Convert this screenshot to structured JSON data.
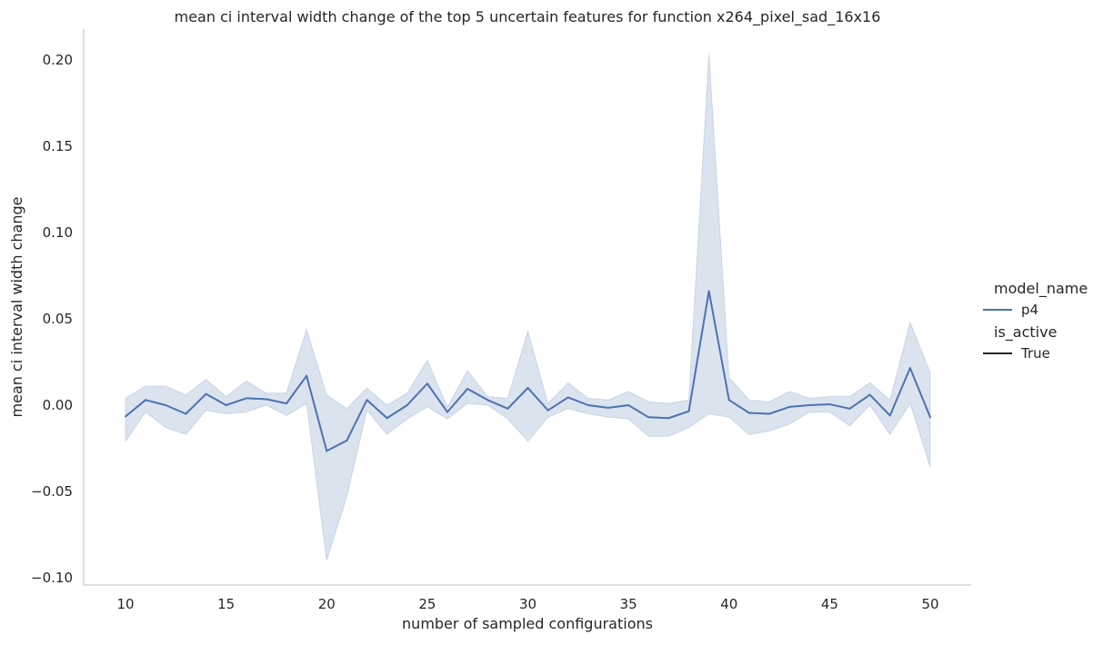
{
  "chart_data": {
    "type": "line",
    "title": "mean ci interval width change of the top 5 uncertain features for function x264_pixel_sad_16x16",
    "xlabel": "number of sampled configurations",
    "ylabel": "mean ci interval width change",
    "xlim": [
      8,
      52
    ],
    "ylim": [
      -0.105,
      0.218
    ],
    "xticks": [
      10,
      15,
      20,
      25,
      30,
      35,
      40,
      45,
      50
    ],
    "yticks": [
      -0.1,
      -0.05,
      0.0,
      0.05,
      0.1,
      0.15,
      0.2
    ],
    "ytick_labels": [
      "−0.10",
      "−0.05",
      "0.00",
      "0.05",
      "0.10",
      "0.15",
      "0.20"
    ],
    "grid": false,
    "legend_placement": "right",
    "legend": {
      "title1": "model_name",
      "title2": "is_active",
      "entries": [
        {
          "label": "p4",
          "color": "#4c72b0"
        },
        {
          "label": "True",
          "color": "#262626"
        }
      ]
    },
    "series": [
      {
        "name": "p4",
        "color": "#4c72b0",
        "band_color": "#4c72b0",
        "x": [
          10,
          11,
          12,
          13,
          14,
          15,
          16,
          17,
          18,
          19,
          20,
          21,
          22,
          23,
          24,
          25,
          26,
          27,
          28,
          29,
          30,
          31,
          32,
          33,
          34,
          35,
          36,
          37,
          38,
          39,
          40,
          41,
          42,
          43,
          44,
          45,
          46,
          47,
          48,
          49,
          50
        ],
        "y": [
          -0.0065,
          0.003,
          0.0,
          -0.005,
          0.0065,
          0.0,
          0.004,
          0.0035,
          0.001,
          0.017,
          -0.0265,
          -0.0205,
          0.003,
          -0.0075,
          0.0,
          0.0125,
          -0.004,
          0.0095,
          0.003,
          -0.002,
          0.01,
          -0.003,
          0.0045,
          0.0,
          -0.0015,
          0.0,
          -0.007,
          -0.0075,
          -0.0035,
          0.066,
          0.003,
          -0.0045,
          -0.005,
          -0.001,
          0.0,
          0.0005,
          -0.002,
          0.006,
          -0.006,
          0.0215,
          -0.007
        ],
        "ci_lower": [
          -0.021,
          -0.004,
          -0.013,
          -0.017,
          -0.003,
          -0.005,
          -0.004,
          0.0,
          -0.006,
          0.001,
          -0.09,
          -0.053,
          -0.003,
          -0.017,
          -0.008,
          -0.001,
          -0.008,
          0.001,
          0.0,
          -0.008,
          -0.021,
          -0.007,
          -0.002,
          -0.005,
          -0.007,
          -0.008,
          -0.018,
          -0.018,
          -0.013,
          -0.005,
          -0.007,
          -0.017,
          -0.015,
          -0.011,
          -0.004,
          -0.004,
          -0.012,
          0.0,
          -0.017,
          0.001,
          -0.036
        ],
        "ci_upper": [
          0.004,
          0.011,
          0.011,
          0.006,
          0.015,
          0.005,
          0.014,
          0.007,
          0.007,
          0.044,
          0.006,
          -0.002,
          0.01,
          0.0,
          0.007,
          0.026,
          -0.001,
          0.02,
          0.005,
          0.004,
          0.043,
          0.001,
          0.013,
          0.004,
          0.003,
          0.008,
          0.002,
          0.001,
          0.003,
          0.204,
          0.016,
          0.003,
          0.002,
          0.008,
          0.004,
          0.005,
          0.005,
          0.013,
          0.003,
          0.048,
          0.019
        ]
      }
    ]
  }
}
